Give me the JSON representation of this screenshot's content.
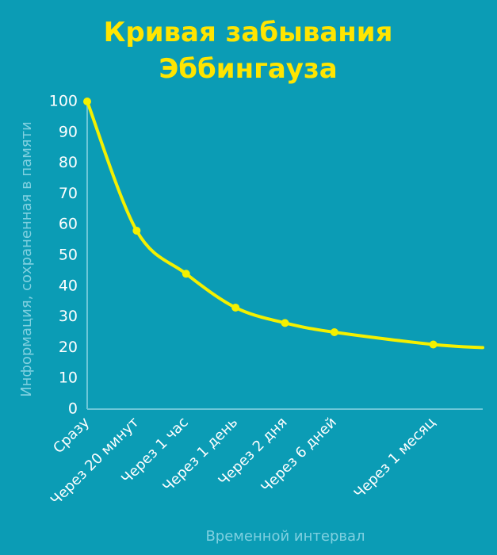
{
  "chart_data": {
    "type": "line",
    "title_lines": [
      "Кривая забывания",
      "Эббингауза"
    ],
    "xlabel": "Временной интервал",
    "ylabel": "Информация, сохраненная в памяти",
    "ylim": [
      0,
      100
    ],
    "yticks": [
      0,
      10,
      20,
      30,
      40,
      50,
      60,
      70,
      80,
      90,
      100
    ],
    "categories": [
      "Сразу",
      "Через 20 минут",
      "Через 1 час",
      "Через 1 день",
      "Через 2 дня",
      "Через 6 дней",
      "",
      "Через 1 месяц",
      ""
    ],
    "values": [
      100,
      58,
      44,
      33,
      28,
      25,
      null,
      21,
      20
    ],
    "markers": [
      true,
      true,
      true,
      true,
      true,
      true,
      false,
      true,
      false
    ],
    "colors": {
      "background": "#0b9cb5",
      "title": "#ffe500",
      "curve": "#f4f000",
      "axis": "#6cc7d8",
      "axis_label": "#7fd0e0",
      "tick": "#ffffff"
    }
  }
}
